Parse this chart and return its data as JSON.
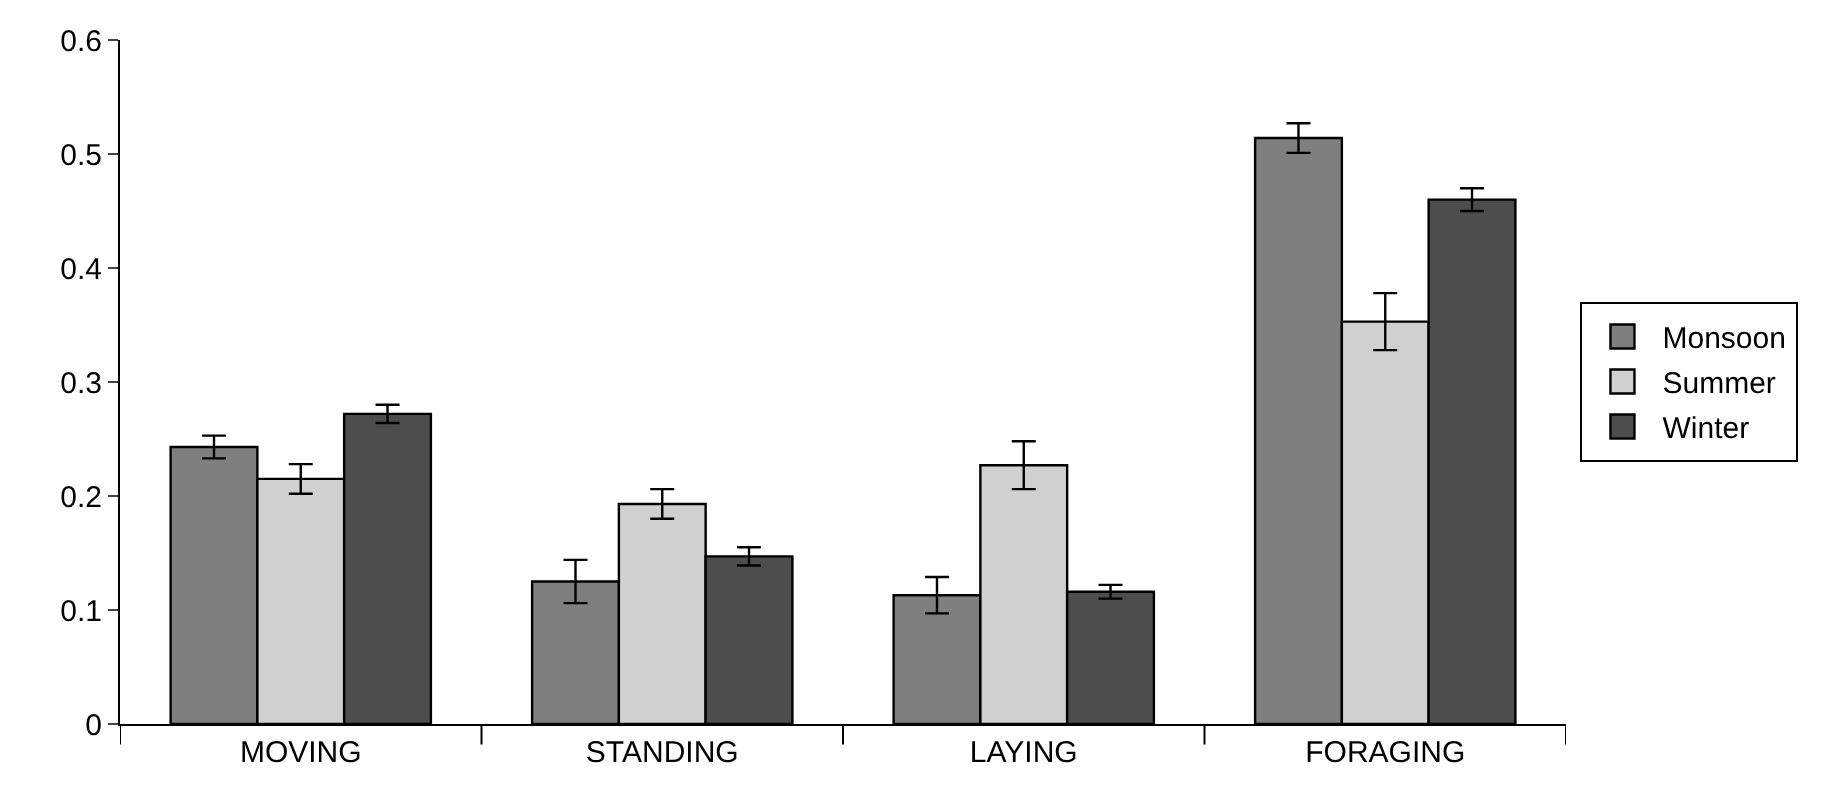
{
  "chart_data": {
    "type": "bar",
    "categories": [
      "MOVING",
      "STANDING",
      "LAYING",
      "FORAGING"
    ],
    "series": [
      {
        "name": "Monsoon",
        "color": "#7f7f7f",
        "values": [
          0.243,
          0.125,
          0.113,
          0.514
        ],
        "errors": [
          0.01,
          0.019,
          0.016,
          0.013
        ]
      },
      {
        "name": "Summer",
        "color": "#d0d0d0",
        "values": [
          0.215,
          0.193,
          0.227,
          0.353
        ],
        "errors": [
          0.013,
          0.013,
          0.021,
          0.025
        ]
      },
      {
        "name": "Winter",
        "color": "#4d4d4d",
        "values": [
          0.272,
          0.147,
          0.116,
          0.46
        ],
        "errors": [
          0.008,
          0.008,
          0.006,
          0.01
        ]
      }
    ],
    "ylim": [
      0,
      0.6
    ],
    "yticks": [
      {
        "value": 0,
        "label": "0"
      },
      0.1,
      0.2,
      0.3,
      0.4,
      0.5,
      0.6
    ],
    "grid": false,
    "legend": "right"
  }
}
